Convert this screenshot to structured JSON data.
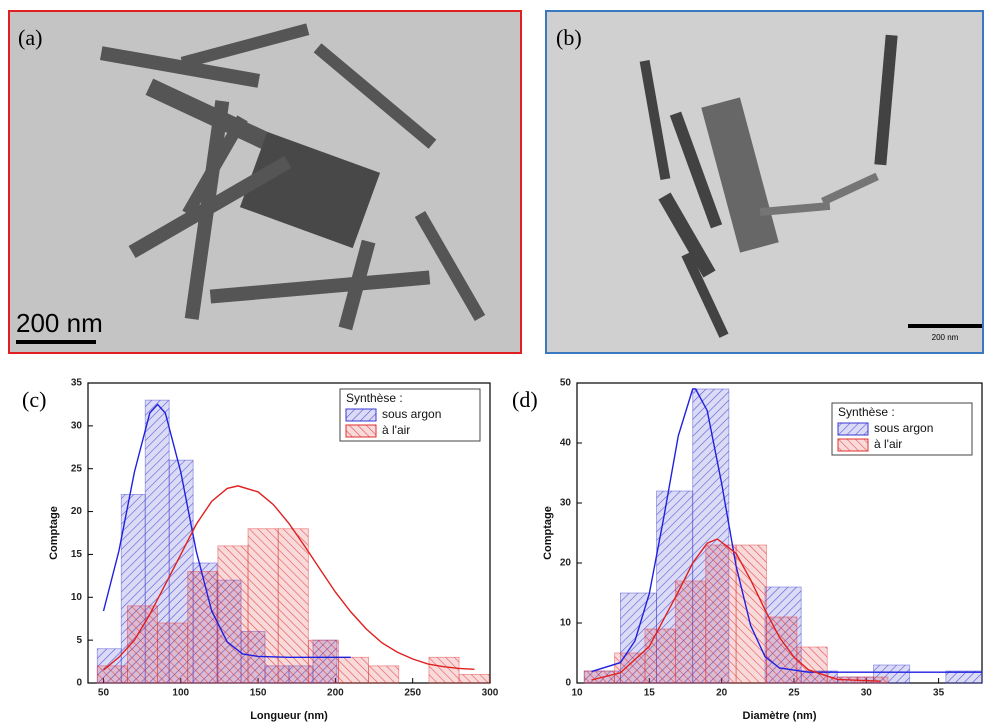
{
  "images": [
    {
      "label": "(a)",
      "scale_bar": "200 nm"
    },
    {
      "label": "(b)",
      "scale_bar": "200 nm"
    }
  ],
  "chart_data": [
    {
      "type": "histogram",
      "panel": "(c)",
      "xlabel": "Longueur (nm)",
      "ylabel": "Comptage",
      "xlim": [
        40,
        300
      ],
      "ylim": [
        0,
        35
      ],
      "xticks": [
        50,
        100,
        150,
        200,
        250,
        300
      ],
      "yticks": [
        0,
        5,
        10,
        15,
        20,
        25,
        30,
        35
      ],
      "legend_title": "Synthèse :",
      "legend": "upper right",
      "series": [
        {
          "name": "sous argon",
          "color": "#3a3ad0",
          "bins": [
            46,
            61.5,
            77,
            92.5,
            108,
            123.5,
            139,
            154.5,
            170,
            185.5,
            201
          ],
          "values": [
            4,
            22,
            33,
            26,
            14,
            12,
            6,
            2,
            2,
            5
          ]
        },
        {
          "name": "à l'air",
          "color": "#e03030",
          "bins": [
            46,
            65.5,
            85,
            104.5,
            124,
            143.5,
            163,
            182.5,
            202,
            221.5,
            241,
            260.5,
            280,
            299.5
          ],
          "values": [
            2,
            9,
            7,
            13,
            16,
            18,
            18,
            5,
            3,
            2,
            0,
            3,
            1
          ]
        }
      ],
      "fits": [
        {
          "color": "#2020e0",
          "x": [
            50,
            60,
            70,
            80,
            85,
            90,
            100,
            110,
            120,
            130,
            140,
            150,
            170,
            190,
            210
          ],
          "values": [
            8.4,
            15.4,
            24.6,
            31.5,
            32.5,
            31.5,
            24.6,
            15.4,
            8.4,
            4.8,
            3.4,
            3.1,
            3.0,
            3.0,
            3.0
          ]
        },
        {
          "color": "#e02020",
          "x": [
            50,
            60,
            70,
            80,
            90,
            100,
            110,
            120,
            130,
            137,
            150,
            160,
            170,
            180,
            190,
            200,
            210,
            220,
            230,
            240,
            250,
            260,
            270,
            280,
            290
          ],
          "values": [
            1.5,
            3,
            5,
            8,
            11.5,
            15,
            18.5,
            21.2,
            22.7,
            23,
            22.3,
            20.8,
            18.6,
            16,
            13.3,
            10.6,
            8.3,
            6.3,
            4.7,
            3.6,
            2.8,
            2.2,
            1.9,
            1.7,
            1.6
          ]
        }
      ]
    },
    {
      "type": "histogram",
      "panel": "(d)",
      "xlabel": "Diamètre (nm)",
      "ylabel": "Comptage",
      "xlim": [
        10,
        38
      ],
      "ylim": [
        0,
        50
      ],
      "xticks": [
        10,
        15,
        20,
        25,
        30,
        35
      ],
      "yticks": [
        0,
        10,
        20,
        30,
        40,
        50
      ],
      "legend_title": "Synthèse :",
      "legend": "upper right",
      "series": [
        {
          "name": "sous argon",
          "color": "#3a3ad0",
          "bins": [
            10.5,
            13,
            15.5,
            18,
            20.5,
            23,
            25.5,
            28,
            30.5,
            33,
            35.5,
            38
          ],
          "values": [
            2,
            15,
            32,
            49,
            0,
            16,
            2,
            1,
            3,
            0,
            2
          ]
        },
        {
          "name": "à l'air",
          "color": "#e03030",
          "bins": [
            10.5,
            12.6,
            14.7,
            16.8,
            18.9,
            21,
            23.1,
            25.2,
            27.3,
            29.4,
            31.5
          ],
          "values": [
            2,
            5,
            9,
            17,
            23,
            23,
            11,
            6,
            1,
            1
          ]
        }
      ],
      "fits": [
        {
          "color": "#2020e0",
          "x": [
            11,
            13,
            14,
            15,
            16,
            17,
            18,
            18.2,
            19,
            20,
            21,
            22,
            23,
            24,
            26,
            30,
            38
          ],
          "values": [
            1.9,
            3.4,
            7.0,
            14.9,
            27.6,
            41.2,
            49,
            49,
            45.4,
            33.3,
            19.5,
            9.6,
            4.4,
            2.5,
            1.8,
            1.8,
            1.8
          ]
        },
        {
          "color": "#e02020",
          "x": [
            11,
            13,
            15,
            17,
            18,
            19,
            19.7,
            21,
            22,
            23,
            24,
            25,
            26,
            28,
            31
          ],
          "values": [
            0.5,
            1.7,
            6.1,
            15.2,
            20.0,
            23.3,
            24,
            21.6,
            17.2,
            12.2,
            7.6,
            4.3,
            2.2,
            0.6,
            0.3
          ]
        }
      ]
    }
  ]
}
